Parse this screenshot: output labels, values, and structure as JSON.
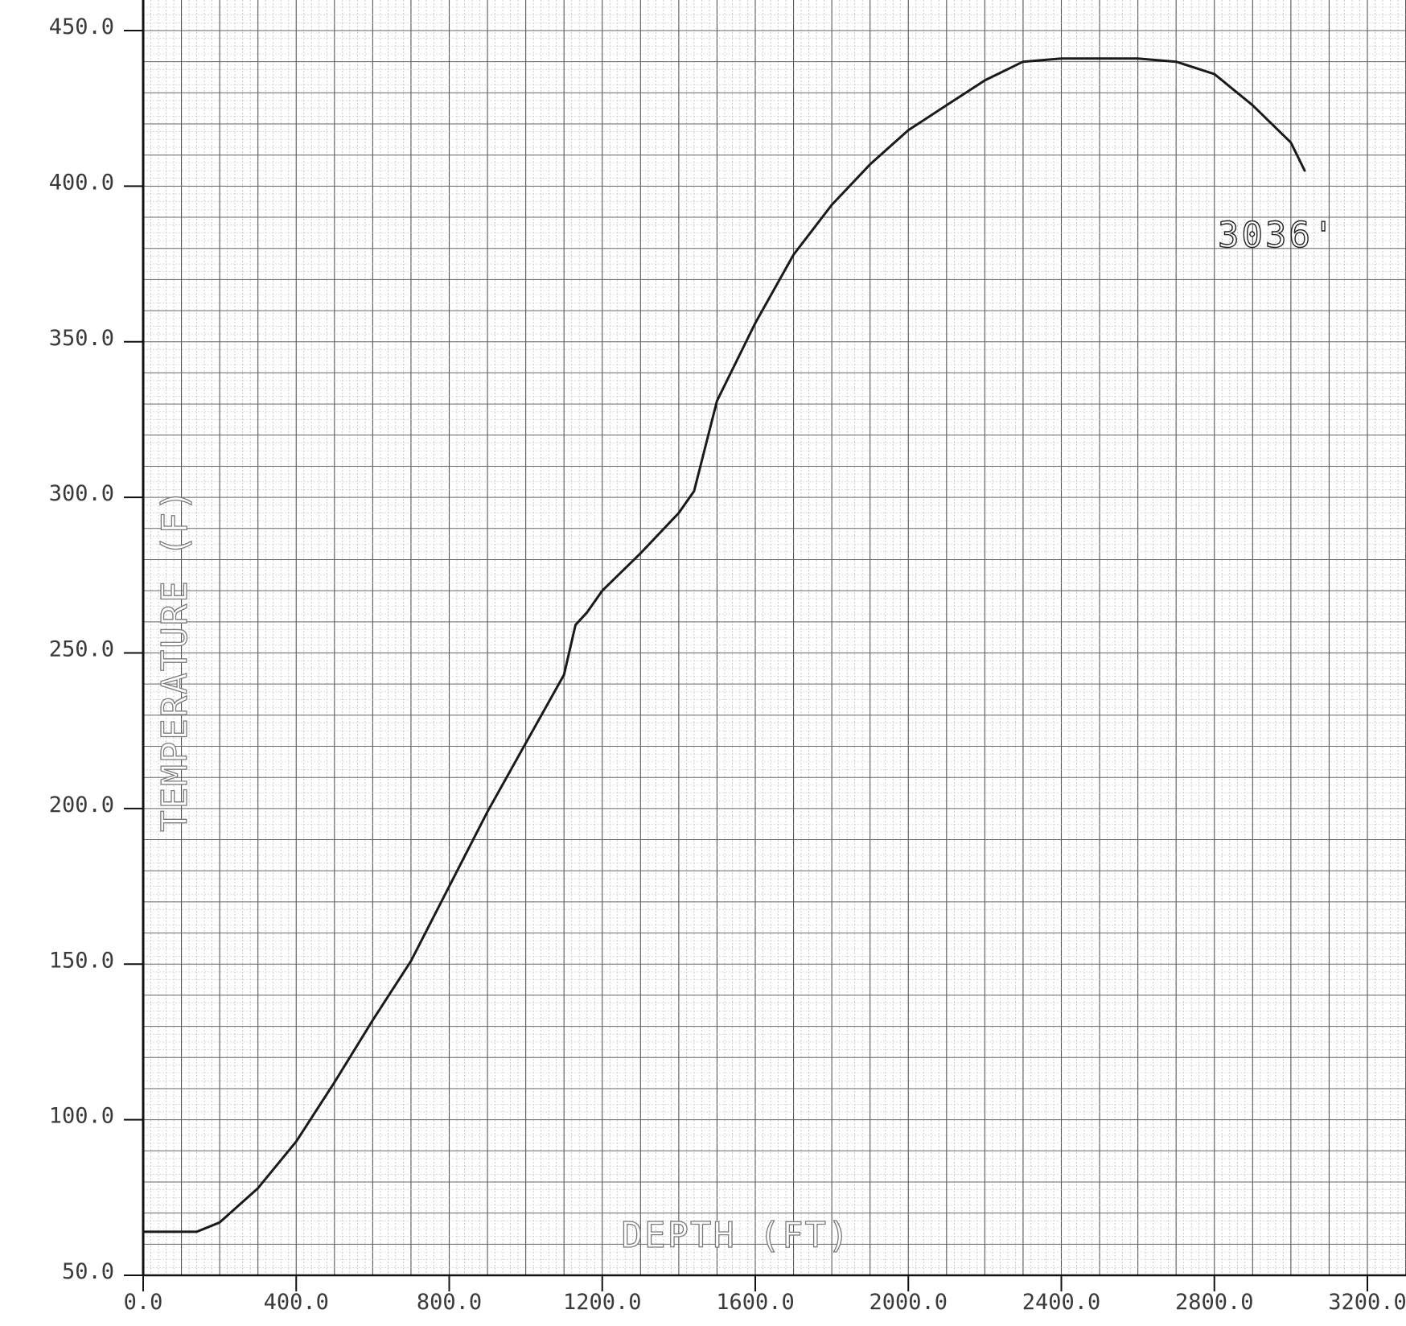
{
  "chart_data": {
    "type": "line",
    "title": "",
    "xlabel": "DEPTH (FT)",
    "ylabel": "TEMPERATURE (F)",
    "xlim": [
      0,
      3200
    ],
    "ylim": [
      50,
      450
    ],
    "x_ticks": [
      0,
      400,
      800,
      1200,
      1600,
      2000,
      2400,
      2800,
      3200
    ],
    "x_tick_labels": [
      "0.0",
      "400.0",
      "800.0",
      "1200.0",
      "1600.0",
      "2000.0",
      "2400.0",
      "2800.0",
      "3200.0"
    ],
    "y_ticks": [
      50,
      100,
      150,
      200,
      250,
      300,
      350,
      400,
      450
    ],
    "y_tick_labels": [
      "50.0",
      "100.0",
      "150.0",
      "200.0",
      "250.0",
      "300.0",
      "350.0",
      "400.0",
      "450.0"
    ],
    "grid": true,
    "annotation": {
      "text": "3036'",
      "x": 3036,
      "y": 397
    },
    "series": [
      {
        "x": [
          0,
          140,
          200,
          300,
          400,
          500,
          600,
          700,
          800,
          900,
          1000,
          1100,
          1130,
          1160,
          1200,
          1300,
          1400,
          1440,
          1500,
          1600,
          1700,
          1800,
          1900,
          2000,
          2100,
          2200,
          2300,
          2400,
          2500,
          2600,
          2700,
          2800,
          2900,
          3000,
          3036
        ],
        "y": [
          64,
          64,
          67,
          78,
          93,
          112,
          132,
          151,
          175,
          199,
          221,
          243,
          259,
          263,
          270,
          282,
          295,
          302,
          331,
          356,
          378,
          394,
          407,
          418,
          426,
          434,
          440,
          441,
          441,
          441,
          440,
          436,
          426,
          414,
          405
        ]
      }
    ]
  }
}
